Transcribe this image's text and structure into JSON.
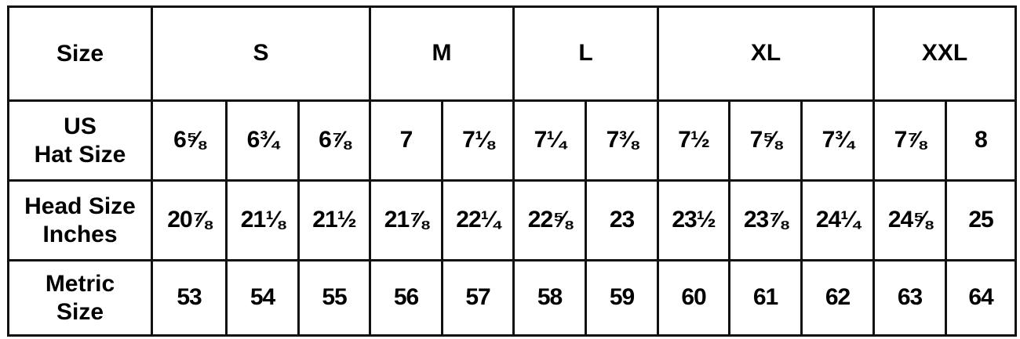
{
  "header": {
    "label": "Size",
    "groups": [
      {
        "label": "S",
        "span": 3
      },
      {
        "label": "M",
        "span": 2
      },
      {
        "label": "L",
        "span": 2
      },
      {
        "label": "XL",
        "span": 3
      },
      {
        "label": "XXL",
        "span": 2
      }
    ]
  },
  "rows": [
    {
      "label_lines": [
        "US",
        "Hat Size"
      ],
      "values": [
        "6⅝",
        "6¾",
        "6⅞",
        "7",
        "7⅛",
        "7¼",
        "7⅜",
        "7½",
        "7⅝",
        "7¾",
        "7⅞",
        "8"
      ]
    },
    {
      "label_lines": [
        "Head Size",
        "Inches"
      ],
      "values": [
        "20⅞",
        "21⅛",
        "21½",
        "21⅞",
        "22¼",
        "22⅝",
        "23",
        "23½",
        "23⅞",
        "24¼",
        "24⅝",
        "25"
      ]
    },
    {
      "label_lines": [
        "Metric",
        "Size"
      ],
      "values": [
        "53",
        "54",
        "55",
        "56",
        "57",
        "58",
        "59",
        "60",
        "61",
        "62",
        "63",
        "64"
      ]
    }
  ]
}
